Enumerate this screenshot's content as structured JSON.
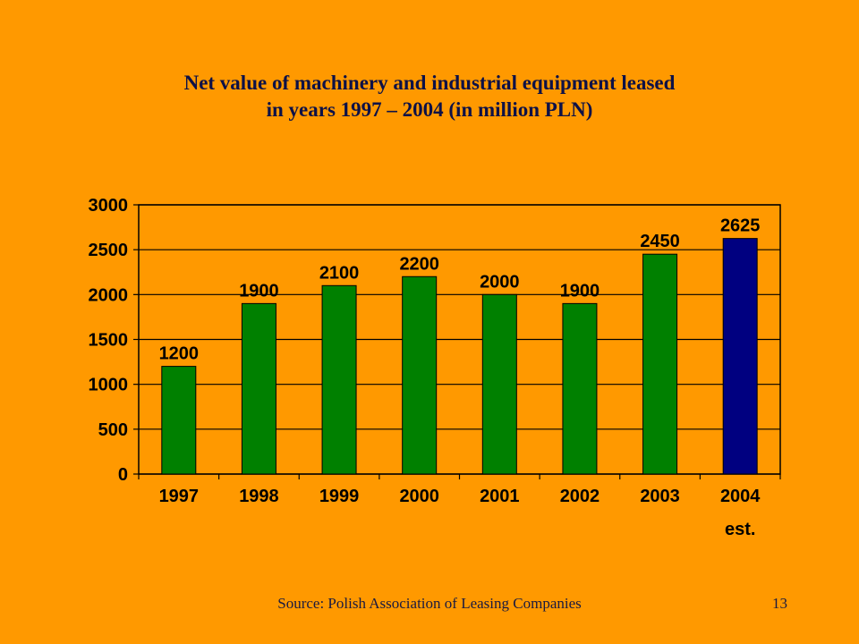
{
  "chart_data": {
    "type": "bar",
    "title": "Net value of machinery and industrial equipment leased in years 1997 – 2004 (in million PLN)",
    "title_lines": [
      "Net value of machinery and industrial equipment leased",
      "in years 1997 – 2004 (in million PLN)"
    ],
    "categories": [
      "1997",
      "1998",
      "1999",
      "2000",
      "2001",
      "2002",
      "2003",
      "2004"
    ],
    "category_sublabels": [
      "",
      "",
      "",
      "",
      "",
      "",
      "",
      "est."
    ],
    "values": [
      1200,
      1900,
      2100,
      2200,
      2000,
      1900,
      2450,
      2625
    ],
    "data_labels": [
      "1200",
      "1900",
      "2100",
      "2200",
      "2000",
      "1900",
      "2450",
      "2625"
    ],
    "bar_colors": [
      "#008000",
      "#008000",
      "#008000",
      "#008000",
      "#008000",
      "#008000",
      "#008000",
      "#000080"
    ],
    "ylim": [
      0,
      3000
    ],
    "yticks": [
      0,
      500,
      1000,
      1500,
      2000,
      2500,
      3000
    ],
    "xlabel": "",
    "ylabel": "",
    "grid": true,
    "legend": "none"
  },
  "footer": {
    "source": "Source: Polish Association of Leasing Companies",
    "page_number": "13"
  },
  "colors": {
    "background": "#FF9900",
    "bar_actual": "#008000",
    "bar_estimate": "#000080",
    "title_text": "#0d1147"
  }
}
